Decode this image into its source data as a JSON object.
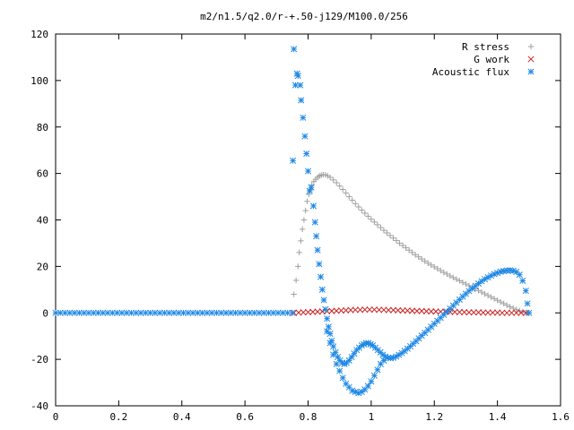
{
  "chart_data": {
    "type": "scatter",
    "title": "m2/n1.5/q2.0/r-+.50-j129/M100.0/256",
    "xlabel": "",
    "ylabel": "",
    "xlim": [
      0,
      1.6
    ],
    "ylim": [
      -40,
      120
    ],
    "xticks": [
      "0",
      "0.2",
      "0.4",
      "0.6",
      "0.8",
      "1",
      "1.2",
      "1.4",
      "1.6"
    ],
    "yticks": [
      "-40",
      "-20",
      "0",
      "20",
      "40",
      "60",
      "80",
      "100",
      "120"
    ],
    "grid": false,
    "legend_position": "top-right",
    "series": [
      {
        "name": "R stress",
        "marker": "+",
        "color": "#a0a0a0",
        "points": [
          [
            0.755,
            8
          ],
          [
            0.762,
            14
          ],
          [
            0.768,
            20
          ],
          [
            0.772,
            26
          ],
          [
            0.777,
            31
          ],
          [
            0.782,
            36
          ],
          [
            0.787,
            40
          ],
          [
            0.792,
            44
          ],
          [
            0.797,
            48
          ],
          [
            0.802,
            51
          ],
          [
            0.807,
            53
          ],
          [
            0.812,
            55
          ],
          [
            0.818,
            56.5
          ],
          [
            0.824,
            57.5
          ],
          [
            0.83,
            58.3
          ],
          [
            0.836,
            58.9
          ],
          [
            0.842,
            59.3
          ],
          [
            0.848,
            59.5
          ],
          [
            0.855,
            59.4
          ],
          [
            0.862,
            59.0
          ],
          [
            0.87,
            58.3
          ],
          [
            0.88,
            57.2
          ],
          [
            0.89,
            56.0
          ],
          [
            0.9,
            54.6
          ],
          [
            0.91,
            53.1
          ],
          [
            0.92,
            51.6
          ],
          [
            0.93,
            50.0
          ],
          [
            0.94,
            48.5
          ],
          [
            0.95,
            47.0
          ],
          [
            0.96,
            45.6
          ],
          [
            0.97,
            44.2
          ],
          [
            0.98,
            42.9
          ],
          [
            0.99,
            41.6
          ],
          [
            1.0,
            40.3
          ],
          [
            1.01,
            39.1
          ],
          [
            1.02,
            37.9
          ],
          [
            1.03,
            36.7
          ],
          [
            1.04,
            35.5
          ],
          [
            1.05,
            34.4
          ],
          [
            1.06,
            33.3
          ],
          [
            1.07,
            32.2
          ],
          [
            1.08,
            31.1
          ],
          [
            1.09,
            30.0
          ],
          [
            1.1,
            29.0
          ],
          [
            1.11,
            28.0
          ],
          [
            1.12,
            27.0
          ],
          [
            1.13,
            26.0
          ],
          [
            1.14,
            25.0
          ],
          [
            1.15,
            24.1
          ],
          [
            1.16,
            23.2
          ],
          [
            1.17,
            22.3
          ],
          [
            1.18,
            21.4
          ],
          [
            1.19,
            20.6
          ],
          [
            1.2,
            19.8
          ],
          [
            1.21,
            19.0
          ],
          [
            1.22,
            18.2
          ],
          [
            1.23,
            17.4
          ],
          [
            1.24,
            16.7
          ],
          [
            1.25,
            15.9
          ],
          [
            1.26,
            15.2
          ],
          [
            1.27,
            14.5
          ],
          [
            1.28,
            13.8
          ],
          [
            1.29,
            13.1
          ],
          [
            1.3,
            12.4
          ],
          [
            1.31,
            11.7
          ],
          [
            1.32,
            11.0
          ],
          [
            1.33,
            10.3
          ],
          [
            1.34,
            9.6
          ],
          [
            1.35,
            8.9
          ],
          [
            1.36,
            8.2
          ],
          [
            1.37,
            7.5
          ],
          [
            1.38,
            6.8
          ],
          [
            1.39,
            6.1
          ],
          [
            1.4,
            5.4
          ],
          [
            1.41,
            4.7
          ],
          [
            1.42,
            4.0
          ],
          [
            1.43,
            3.3
          ],
          [
            1.44,
            2.6
          ],
          [
            1.45,
            2.0
          ],
          [
            1.46,
            1.4
          ],
          [
            1.47,
            0.9
          ],
          [
            1.48,
            0.5
          ],
          [
            1.49,
            0.2
          ],
          [
            1.5,
            0.0
          ]
        ]
      },
      {
        "name": "G work",
        "marker": "x",
        "color": "#cc2222",
        "points": [
          [
            0.755,
            0.0
          ],
          [
            0.77,
            0.1
          ],
          [
            0.785,
            0.2
          ],
          [
            0.8,
            0.3
          ],
          [
            0.815,
            0.4
          ],
          [
            0.83,
            0.5
          ],
          [
            0.845,
            0.6
          ],
          [
            0.86,
            0.7
          ],
          [
            0.875,
            0.8
          ],
          [
            0.89,
            0.9
          ],
          [
            0.905,
            1.0
          ],
          [
            0.92,
            1.1
          ],
          [
            0.935,
            1.2
          ],
          [
            0.95,
            1.3
          ],
          [
            0.965,
            1.3
          ],
          [
            0.98,
            1.4
          ],
          [
            0.995,
            1.4
          ],
          [
            1.01,
            1.4
          ],
          [
            1.025,
            1.3
          ],
          [
            1.04,
            1.3
          ],
          [
            1.055,
            1.2
          ],
          [
            1.07,
            1.2
          ],
          [
            1.085,
            1.1
          ],
          [
            1.1,
            1.0
          ],
          [
            1.115,
            1.0
          ],
          [
            1.13,
            0.9
          ],
          [
            1.145,
            0.8
          ],
          [
            1.16,
            0.8
          ],
          [
            1.175,
            0.7
          ],
          [
            1.19,
            0.6
          ],
          [
            1.205,
            0.6
          ],
          [
            1.22,
            0.5
          ],
          [
            1.235,
            0.5
          ],
          [
            1.25,
            0.4
          ],
          [
            1.265,
            0.4
          ],
          [
            1.28,
            0.3
          ],
          [
            1.295,
            0.3
          ],
          [
            1.31,
            0.2
          ],
          [
            1.325,
            0.2
          ],
          [
            1.34,
            0.2
          ],
          [
            1.355,
            0.1
          ],
          [
            1.37,
            0.1
          ],
          [
            1.385,
            0.1
          ],
          [
            1.4,
            0.1
          ],
          [
            1.415,
            0.0
          ],
          [
            1.43,
            0.0
          ],
          [
            1.445,
            0.0
          ],
          [
            1.46,
            0.0
          ],
          [
            1.475,
            0.0
          ],
          [
            1.49,
            0.0
          ]
        ]
      },
      {
        "name": "Acoustic flux",
        "marker": "*",
        "color": "#1e88e5",
        "points": [
          [
            0.0,
            0.0
          ],
          [
            0.015,
            0.0
          ],
          [
            0.03,
            0.0
          ],
          [
            0.045,
            0.0
          ],
          [
            0.06,
            0.0
          ],
          [
            0.075,
            0.0
          ],
          [
            0.09,
            0.0
          ],
          [
            0.105,
            0.0
          ],
          [
            0.12,
            0.0
          ],
          [
            0.135,
            0.0
          ],
          [
            0.15,
            0.0
          ],
          [
            0.165,
            0.0
          ],
          [
            0.18,
            0.0
          ],
          [
            0.195,
            0.0
          ],
          [
            0.21,
            0.0
          ],
          [
            0.225,
            0.0
          ],
          [
            0.24,
            0.0
          ],
          [
            0.255,
            0.0
          ],
          [
            0.27,
            0.0
          ],
          [
            0.285,
            0.0
          ],
          [
            0.3,
            0.0
          ],
          [
            0.315,
            0.0
          ],
          [
            0.33,
            0.0
          ],
          [
            0.345,
            0.0
          ],
          [
            0.36,
            0.0
          ],
          [
            0.375,
            0.0
          ],
          [
            0.39,
            0.0
          ],
          [
            0.405,
            0.0
          ],
          [
            0.42,
            0.0
          ],
          [
            0.435,
            0.0
          ],
          [
            0.45,
            0.0
          ],
          [
            0.465,
            0.0
          ],
          [
            0.48,
            0.0
          ],
          [
            0.495,
            0.0
          ],
          [
            0.51,
            0.0
          ],
          [
            0.525,
            0.0
          ],
          [
            0.54,
            0.0
          ],
          [
            0.555,
            0.0
          ],
          [
            0.57,
            0.0
          ],
          [
            0.585,
            0.0
          ],
          [
            0.6,
            0.0
          ],
          [
            0.615,
            0.0
          ],
          [
            0.63,
            0.0
          ],
          [
            0.645,
            0.0
          ],
          [
            0.66,
            0.0
          ],
          [
            0.675,
            0.0
          ],
          [
            0.69,
            0.0
          ],
          [
            0.705,
            0.0
          ],
          [
            0.72,
            0.0
          ],
          [
            0.735,
            0.0
          ],
          [
            0.75,
            0.0
          ],
          [
            0.752,
            65.5
          ],
          [
            0.755,
            113.5
          ],
          [
            0.76,
            98
          ],
          [
            0.765,
            103
          ],
          [
            0.768,
            102
          ],
          [
            0.775,
            98
          ],
          [
            0.778,
            91.5
          ],
          [
            0.784,
            84
          ],
          [
            0.79,
            76
          ],
          [
            0.795,
            68.5
          ],
          [
            0.8,
            61
          ],
          [
            0.805,
            52.5
          ],
          [
            0.81,
            54
          ],
          [
            0.817,
            46
          ],
          [
            0.822,
            39
          ],
          [
            0.826,
            33
          ],
          [
            0.83,
            27
          ],
          [
            0.835,
            21
          ],
          [
            0.84,
            15.5
          ],
          [
            0.845,
            10
          ],
          [
            0.85,
            5.5
          ],
          [
            0.855,
            1.5
          ],
          [
            0.86,
            -2.5
          ],
          [
            0.865,
            -6
          ],
          [
            0.87,
            -9
          ],
          [
            0.875,
            -12
          ],
          [
            0.88,
            -14.5
          ],
          [
            0.887,
            -17
          ],
          [
            0.894,
            -19
          ],
          [
            0.901,
            -20.5
          ],
          [
            0.908,
            -21.5
          ],
          [
            0.915,
            -22
          ],
          [
            0.922,
            -21.5
          ],
          [
            0.93,
            -20.5
          ],
          [
            0.938,
            -19
          ],
          [
            0.946,
            -17.5
          ],
          [
            0.954,
            -16
          ],
          [
            0.962,
            -15
          ],
          [
            0.97,
            -14
          ],
          [
            0.977,
            -13.5
          ],
          [
            0.984,
            -13
          ],
          [
            0.991,
            -13
          ],
          [
            0.998,
            -13.5
          ],
          [
            1.005,
            -14
          ],
          [
            1.013,
            -15
          ],
          [
            1.021,
            -16
          ],
          [
            1.029,
            -17
          ],
          [
            1.037,
            -18
          ],
          [
            1.045,
            -18.8
          ],
          [
            1.053,
            -19.3
          ],
          [
            1.061,
            -19.5
          ],
          [
            1.07,
            -19.3
          ],
          [
            1.079,
            -18.8
          ],
          [
            1.088,
            -18.1
          ],
          [
            1.097,
            -17.3
          ],
          [
            1.106,
            -16.4
          ],
          [
            1.115,
            -15.4
          ],
          [
            1.124,
            -14.4
          ],
          [
            1.133,
            -13.3
          ],
          [
            1.142,
            -12.2
          ],
          [
            1.151,
            -11.0
          ],
          [
            1.16,
            -9.8
          ],
          [
            1.17,
            -8.6
          ],
          [
            1.18,
            -7.3
          ],
          [
            1.19,
            -6.0
          ],
          [
            1.2,
            -4.7
          ],
          [
            1.21,
            -3.4
          ],
          [
            1.22,
            -2.1
          ],
          [
            1.23,
            -0.8
          ],
          [
            1.24,
            0.5
          ],
          [
            1.25,
            1.8
          ],
          [
            1.26,
            3.1
          ],
          [
            1.27,
            4.4
          ],
          [
            1.28,
            5.7
          ],
          [
            1.29,
            7.0
          ],
          [
            1.3,
            8.2
          ],
          [
            1.31,
            9.4
          ],
          [
            1.32,
            10.5
          ],
          [
            1.33,
            11.6
          ],
          [
            1.34,
            12.6
          ],
          [
            1.35,
            13.6
          ],
          [
            1.36,
            14.5
          ],
          [
            1.37,
            15.3
          ],
          [
            1.38,
            16.0
          ],
          [
            1.39,
            16.7
          ],
          [
            1.4,
            17.2
          ],
          [
            1.41,
            17.7
          ],
          [
            1.42,
            18.0
          ],
          [
            1.43,
            18.2
          ],
          [
            1.44,
            18.3
          ],
          [
            1.45,
            18.1
          ],
          [
            1.46,
            17.6
          ],
          [
            1.47,
            16.4
          ],
          [
            1.48,
            13.8
          ],
          [
            1.49,
            9.5
          ],
          [
            1.495,
            4.0
          ],
          [
            1.5,
            0.0
          ],
          [
            0.86,
            -8
          ],
          [
            0.87,
            -13
          ],
          [
            0.88,
            -18
          ],
          [
            0.89,
            -22
          ],
          [
            0.9,
            -25
          ],
          [
            0.91,
            -28
          ],
          [
            0.92,
            -30.5
          ],
          [
            0.93,
            -32
          ],
          [
            0.94,
            -33.5
          ],
          [
            0.95,
            -34
          ],
          [
            0.96,
            -34.5
          ],
          [
            0.97,
            -34
          ],
          [
            0.98,
            -33
          ],
          [
            0.99,
            -31.5
          ],
          [
            1.0,
            -29.5
          ],
          [
            1.01,
            -27
          ],
          [
            1.02,
            -24.5
          ],
          [
            1.03,
            -22
          ],
          [
            1.04,
            -20.5
          ]
        ]
      }
    ]
  }
}
